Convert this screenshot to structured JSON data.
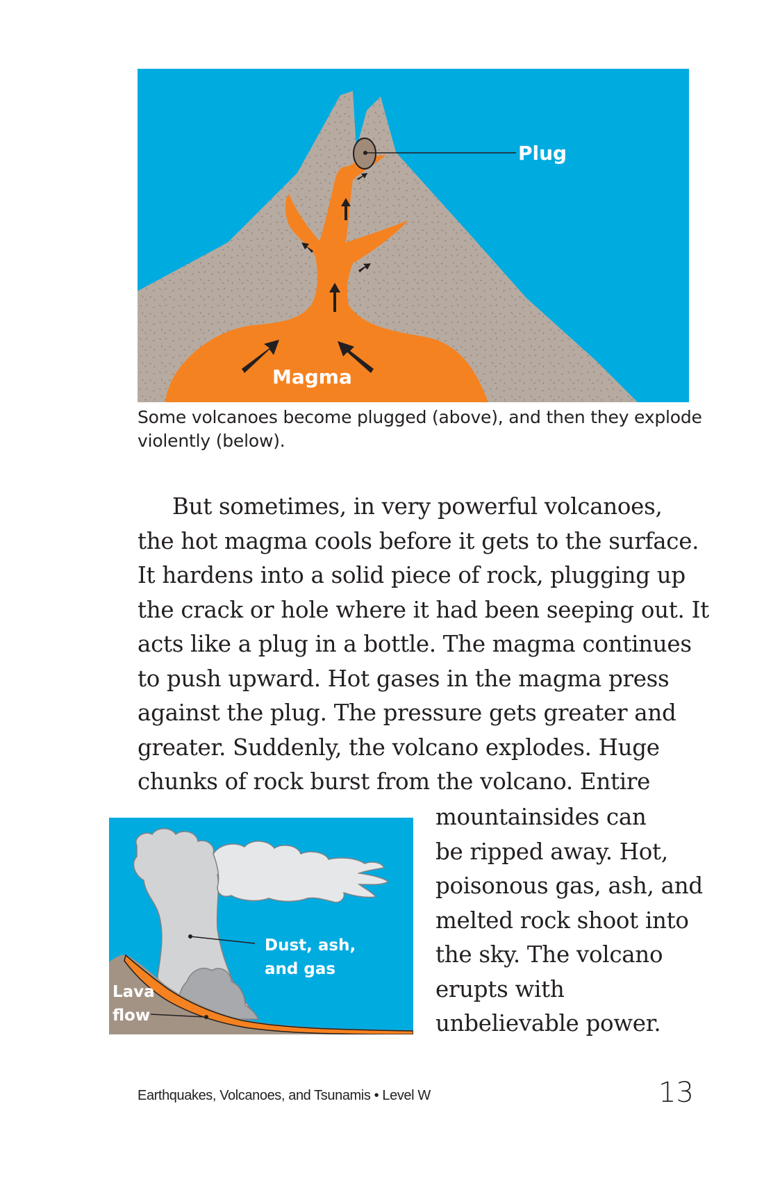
{
  "figure_top": {
    "labels": {
      "plug": "Plug",
      "magma": "Magma"
    },
    "colors": {
      "sky": "#00abe0",
      "rock": "#b7aba1",
      "magma": "#f58220",
      "plug": "#a08a78"
    }
  },
  "caption_lines": [
    "Some volcanoes become plugged (above), and then they explode",
    "violently (below)."
  ],
  "paragraph_lines": [
    "But sometimes, in very powerful volcanoes,",
    "the hot magma cools before it gets to the surface.",
    "It hardens into a solid piece of rock, plugging up",
    "the crack or hole where it had been seeping out. It",
    "acts like a plug in a bottle. The magma continues",
    "to push upward. Hot gases in the magma press",
    "against the plug. The pressure gets greater and",
    "greater. Suddenly, the volcano explodes. Huge",
    "chunks of rock burst from the volcano. Entire"
  ],
  "wrap_lines": [
    "mountainsides can",
    "be ripped away. Hot,",
    "poisonous gas, ash, and",
    "melted rock shoot into",
    "the sky. The volcano",
    "erupts with",
    "unbelievable power."
  ],
  "figure_bottom": {
    "labels": {
      "dust_line1": "Dust, ash,",
      "dust_line2": "and gas",
      "lava_line1": "Lava",
      "lava_line2": "flow"
    },
    "colors": {
      "sky": "#00abe0",
      "cloud": "#d1d3d4",
      "ground": "#a39384",
      "lava": "#f58220"
    }
  },
  "footer": {
    "title": "Earthquakes, Volcanoes, and Tsunamis • Level W",
    "page_number": "13"
  }
}
